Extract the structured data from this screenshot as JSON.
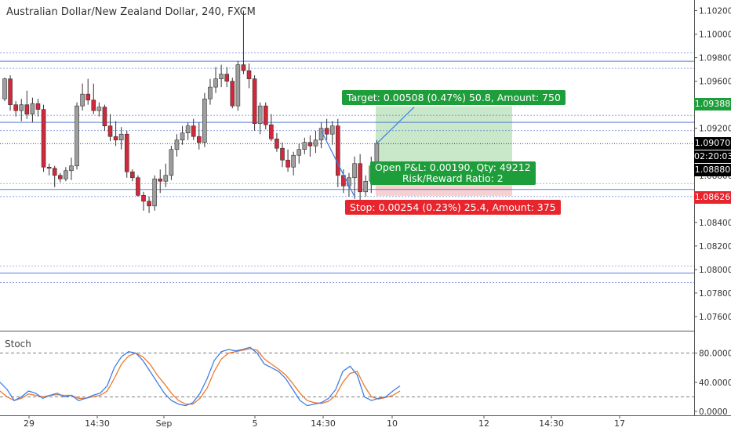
{
  "title": "Australian Dollar/New Zealand Dollar, 240, FXCM",
  "stoch_label": "Stoch",
  "position": {
    "target_label": "Target: 0.00508 (0.47%) 50.8, Amount: 750",
    "stop_label": "Stop: 0.00254 (0.23%) 25.4, Amount: 375",
    "pnl_line1": "Open P&L: 0.00190, Qty: 49212",
    "pnl_line2": "Risk/Reward Ratio: 2",
    "entry": 1.0888,
    "target": 1.09388,
    "stop": 1.08626
  },
  "price_tags": {
    "target": {
      "label": "1.09388",
      "color": "#1e9e3a"
    },
    "current": {
      "label": "1.09070",
      "color": "#000000"
    },
    "countdown": {
      "label": "02:20:03",
      "color": "#000000"
    },
    "entry": {
      "label": "1.08880",
      "color": "#000000"
    },
    "stop": {
      "label": "1.08626",
      "color": "#e8242c"
    }
  },
  "colors": {
    "up": "#9e9e9e",
    "down": "#d1283a",
    "horizontal_lines": "#4a6fd4",
    "stoch_k": "#3d7ee6",
    "stoch_d": "#ee7a2e",
    "profit_zone": "#bfe3bf",
    "loss_zone": "#f6c9c9"
  },
  "chart_data": {
    "type": "candlestick",
    "y_axis_ticks": [
      "1.10200",
      "1.10000",
      "1.09800",
      "1.09600",
      "1.09400",
      "1.09200",
      "1.08800",
      "1.08600",
      "1.08400",
      "1.08200",
      "1.08000",
      "1.07800",
      "1.07600"
    ],
    "ylim": [
      1.0748,
      1.1029
    ],
    "x_axis_ticks": [
      "29",
      "14:30",
      "Sep",
      "5",
      "14:30",
      "10",
      "12",
      "14:30",
      "17"
    ],
    "horizontal_levels": [
      1.0984,
      1.0977,
      1.0971,
      1.0931,
      1.0925,
      1.0918,
      1.0873,
      1.0868,
      1.0862,
      1.0803,
      1.0797,
      1.0789
    ],
    "current_price": 1.0907,
    "candles": [
      {
        "o": 1.0945,
        "h": 1.0963,
        "l": 1.0943,
        "c": 1.0962
      },
      {
        "o": 1.0962,
        "h": 1.0965,
        "l": 1.0935,
        "c": 1.094
      },
      {
        "o": 1.094,
        "h": 1.0943,
        "l": 1.093,
        "c": 1.0935
      },
      {
        "o": 1.0935,
        "h": 1.0945,
        "l": 1.0926,
        "c": 1.094
      },
      {
        "o": 1.094,
        "h": 1.0952,
        "l": 1.0928,
        "c": 1.0932
      },
      {
        "o": 1.0932,
        "h": 1.0946,
        "l": 1.0925,
        "c": 1.0941
      },
      {
        "o": 1.0941,
        "h": 1.0945,
        "l": 1.093,
        "c": 1.0936
      },
      {
        "o": 1.0936,
        "h": 1.094,
        "l": 1.0883,
        "c": 1.0887
      },
      {
        "o": 1.0887,
        "h": 1.089,
        "l": 1.088,
        "c": 1.0886
      },
      {
        "o": 1.0886,
        "h": 1.0888,
        "l": 1.087,
        "c": 1.088
      },
      {
        "o": 1.088,
        "h": 1.0882,
        "l": 1.0874,
        "c": 1.0877
      },
      {
        "o": 1.0877,
        "h": 1.0887,
        "l": 1.0875,
        "c": 1.0884
      },
      {
        "o": 1.0884,
        "h": 1.0895,
        "l": 1.0876,
        "c": 1.0888
      },
      {
        "o": 1.0888,
        "h": 1.0942,
        "l": 1.0885,
        "c": 1.0939
      },
      {
        "o": 1.0939,
        "h": 1.0958,
        "l": 1.0935,
        "c": 1.0949
      },
      {
        "o": 1.0949,
        "h": 1.0962,
        "l": 1.094,
        "c": 1.0944
      },
      {
        "o": 1.0944,
        "h": 1.0958,
        "l": 1.0932,
        "c": 1.0935
      },
      {
        "o": 1.0935,
        "h": 1.0942,
        "l": 1.093,
        "c": 1.0938
      },
      {
        "o": 1.0938,
        "h": 1.094,
        "l": 1.0918,
        "c": 1.0922
      },
      {
        "o": 1.0922,
        "h": 1.0932,
        "l": 1.0909,
        "c": 1.0913
      },
      {
        "o": 1.0913,
        "h": 1.0926,
        "l": 1.0905,
        "c": 1.091
      },
      {
        "o": 1.091,
        "h": 1.0921,
        "l": 1.0902,
        "c": 1.0915
      },
      {
        "o": 1.0915,
        "h": 1.0918,
        "l": 1.0878,
        "c": 1.0883
      },
      {
        "o": 1.0883,
        "h": 1.0885,
        "l": 1.0875,
        "c": 1.0878
      },
      {
        "o": 1.0878,
        "h": 1.088,
        "l": 1.0862,
        "c": 1.0863
      },
      {
        "o": 1.0863,
        "h": 1.0866,
        "l": 1.085,
        "c": 1.0858
      },
      {
        "o": 1.0858,
        "h": 1.0862,
        "l": 1.0848,
        "c": 1.0854
      },
      {
        "o": 1.0854,
        "h": 1.088,
        "l": 1.085,
        "c": 1.0877
      },
      {
        "o": 1.0877,
        "h": 1.0885,
        "l": 1.0865,
        "c": 1.0875
      },
      {
        "o": 1.0875,
        "h": 1.089,
        "l": 1.087,
        "c": 1.088
      },
      {
        "o": 1.088,
        "h": 1.0905,
        "l": 1.0876,
        "c": 1.0902
      },
      {
        "o": 1.0902,
        "h": 1.0915,
        "l": 1.0896,
        "c": 1.091
      },
      {
        "o": 1.091,
        "h": 1.0922,
        "l": 1.0906,
        "c": 1.0916
      },
      {
        "o": 1.0916,
        "h": 1.0925,
        "l": 1.091,
        "c": 1.0922
      },
      {
        "o": 1.0922,
        "h": 1.0928,
        "l": 1.091,
        "c": 1.0913
      },
      {
        "o": 1.0913,
        "h": 1.0925,
        "l": 1.0902,
        "c": 1.0908
      },
      {
        "o": 1.0908,
        "h": 1.095,
        "l": 1.0904,
        "c": 1.0945
      },
      {
        "o": 1.0945,
        "h": 1.0962,
        "l": 1.094,
        "c": 1.0955
      },
      {
        "o": 1.0955,
        "h": 1.0972,
        "l": 1.095,
        "c": 1.0962
      },
      {
        "o": 1.0962,
        "h": 1.0974,
        "l": 1.0955,
        "c": 1.0966
      },
      {
        "o": 1.0966,
        "h": 1.0972,
        "l": 1.0955,
        "c": 1.096
      },
      {
        "o": 1.096,
        "h": 1.0963,
        "l": 1.0937,
        "c": 1.0939
      },
      {
        "o": 1.0939,
        "h": 1.0977,
        "l": 1.0935,
        "c": 1.0974
      },
      {
        "o": 1.0974,
        "h": 1.102,
        "l": 1.0966,
        "c": 1.0969
      },
      {
        "o": 1.0969,
        "h": 1.0975,
        "l": 1.0954,
        "c": 1.0962
      },
      {
        "o": 1.0962,
        "h": 1.0965,
        "l": 1.0918,
        "c": 1.0924
      },
      {
        "o": 1.0924,
        "h": 1.0942,
        "l": 1.0915,
        "c": 1.0939
      },
      {
        "o": 1.0939,
        "h": 1.0942,
        "l": 1.0919,
        "c": 1.0923
      },
      {
        "o": 1.0923,
        "h": 1.0932,
        "l": 1.0909,
        "c": 1.0911
      },
      {
        "o": 1.0911,
        "h": 1.0916,
        "l": 1.09,
        "c": 1.0903
      },
      {
        "o": 1.0903,
        "h": 1.0908,
        "l": 1.0887,
        "c": 1.0893
      },
      {
        "o": 1.0893,
        "h": 1.0902,
        "l": 1.0883,
        "c": 1.0887
      },
      {
        "o": 1.0887,
        "h": 1.09,
        "l": 1.088,
        "c": 1.0897
      },
      {
        "o": 1.0897,
        "h": 1.0907,
        "l": 1.089,
        "c": 1.0902
      },
      {
        "o": 1.0902,
        "h": 1.0912,
        "l": 1.0898,
        "c": 1.0908
      },
      {
        "o": 1.0908,
        "h": 1.0914,
        "l": 1.0896,
        "c": 1.0905
      },
      {
        "o": 1.0905,
        "h": 1.0918,
        "l": 1.0899,
        "c": 1.091
      },
      {
        "o": 1.091,
        "h": 1.0925,
        "l": 1.0903,
        "c": 1.092
      },
      {
        "o": 1.092,
        "h": 1.0928,
        "l": 1.091,
        "c": 1.0915
      },
      {
        "o": 1.0915,
        "h": 1.0926,
        "l": 1.0906,
        "c": 1.0922
      },
      {
        "o": 1.0922,
        "h": 1.0928,
        "l": 1.087,
        "c": 1.088
      },
      {
        "o": 1.088,
        "h": 1.0885,
        "l": 1.0865,
        "c": 1.0871
      },
      {
        "o": 1.0871,
        "h": 1.0882,
        "l": 1.0862,
        "c": 1.0878
      },
      {
        "o": 1.0878,
        "h": 1.0896,
        "l": 1.086,
        "c": 1.089
      },
      {
        "o": 1.089,
        "h": 1.0898,
        "l": 1.0858,
        "c": 1.0866
      },
      {
        "o": 1.0866,
        "h": 1.088,
        "l": 1.0862,
        "c": 1.0875
      },
      {
        "o": 1.0875,
        "h": 1.0896,
        "l": 1.0865,
        "c": 1.0888
      },
      {
        "o": 1.0888,
        "h": 1.091,
        "l": 1.0878,
        "c": 1.0907
      }
    ],
    "stoch": {
      "ylim": [
        0,
        100
      ],
      "ticks": [
        "80.0000",
        "40.0000",
        "0.0000"
      ],
      "levels": [
        80,
        20
      ],
      "k": [
        40,
        30,
        15,
        20,
        28,
        25,
        18,
        22,
        25,
        20,
        22,
        15,
        18,
        22,
        25,
        35,
        60,
        75,
        82,
        80,
        70,
        55,
        40,
        25,
        15,
        10,
        8,
        12,
        25,
        45,
        70,
        82,
        85,
        83,
        85,
        88,
        80,
        65,
        60,
        55,
        45,
        30,
        15,
        8,
        10,
        12,
        18,
        30,
        55,
        62,
        50,
        20,
        15,
        18,
        20,
        28,
        35
      ],
      "d": [
        28,
        20,
        15,
        18,
        24,
        22,
        20,
        22,
        23,
        22,
        22,
        18,
        18,
        20,
        22,
        28,
        45,
        65,
        76,
        80,
        75,
        65,
        50,
        38,
        25,
        15,
        10,
        10,
        18,
        32,
        55,
        72,
        80,
        82,
        84,
        86,
        84,
        72,
        65,
        58,
        50,
        38,
        25,
        15,
        12,
        11,
        14,
        22,
        40,
        52,
        55,
        35,
        20,
        17,
        19,
        22,
        28
      ]
    }
  }
}
